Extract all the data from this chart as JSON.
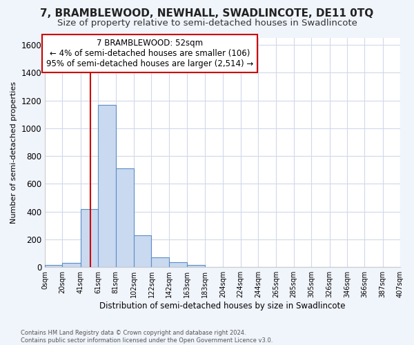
{
  "title": "7, BRAMBLEWOOD, NEWHALL, SWADLINCOTE, DE11 0TQ",
  "subtitle": "Size of property relative to semi-detached houses in Swadlincote",
  "xlabel": "Distribution of semi-detached houses by size in Swadlincote",
  "ylabel": "Number of semi-detached properties",
  "footnote": "Contains HM Land Registry data © Crown copyright and database right 2024.\nContains public sector information licensed under the Open Government Licence v3.0.",
  "bin_edges": [
    0,
    20,
    41,
    61,
    81,
    102,
    122,
    142,
    163,
    183,
    204,
    224,
    244,
    265,
    285,
    305,
    326,
    346,
    366,
    387,
    407
  ],
  "bar_heights": [
    15,
    30,
    420,
    1170,
    710,
    230,
    70,
    35,
    15,
    0,
    0,
    0,
    0,
    0,
    0,
    0,
    0,
    0,
    0,
    0
  ],
  "bar_color": "#c9d9f0",
  "bar_edge_color": "#5b8ec4",
  "property_size": 52,
  "vline_color": "#cc0000",
  "annotation_line1": "7 BRAMBLEWOOD: 52sqm",
  "annotation_line2": "← 4% of semi-detached houses are smaller (106)",
  "annotation_line3": "95% of semi-detached houses are larger (2,514) →",
  "annotation_box_color": "#cc0000",
  "ylim": [
    0,
    1650
  ],
  "yticks": [
    0,
    200,
    400,
    600,
    800,
    1000,
    1200,
    1400,
    1600
  ],
  "xtick_labels": [
    "0sqm",
    "20sqm",
    "41sqm",
    "61sqm",
    "81sqm",
    "102sqm",
    "122sqm",
    "142sqm",
    "163sqm",
    "183sqm",
    "204sqm",
    "224sqm",
    "244sqm",
    "265sqm",
    "285sqm",
    "305sqm",
    "326sqm",
    "346sqm",
    "366sqm",
    "387sqm",
    "407sqm"
  ],
  "plot_bg_color": "#ffffff",
  "fig_bg_color": "#f0f4fb",
  "grid_color": "#d0d8ea",
  "title_fontsize": 11,
  "subtitle_fontsize": 9.5,
  "annotation_fontsize": 8.5
}
